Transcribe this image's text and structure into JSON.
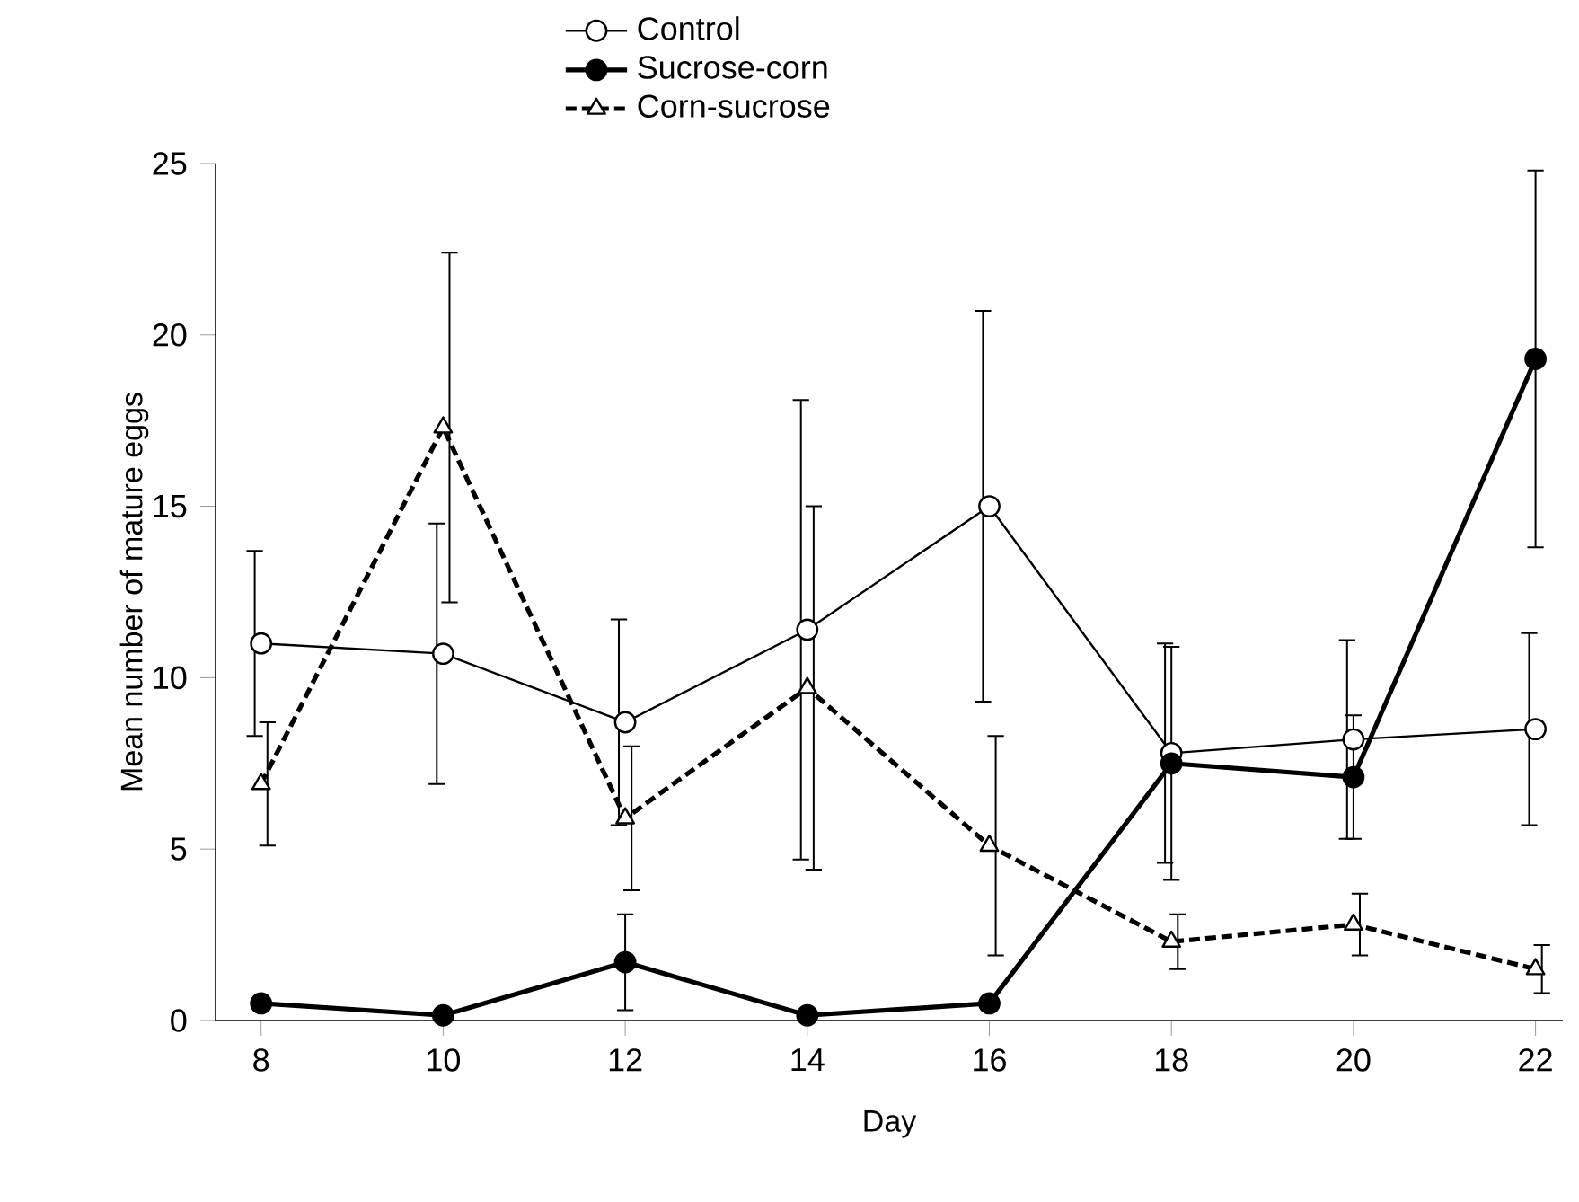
{
  "chart_data": {
    "type": "line",
    "xlabel": "Day",
    "ylabel": "Mean number of mature eggs",
    "x": [
      8,
      10,
      12,
      14,
      16,
      18,
      20,
      22
    ],
    "series": [
      {
        "name": "Control",
        "color": "#000000",
        "marker": "circle",
        "line_style": "solid",
        "values": [
          11,
          10.7,
          8.7,
          11.4,
          15,
          7.8,
          8.2,
          8.5
        ],
        "errors": [
          2.7,
          3.8,
          3,
          6.7,
          5.7,
          3.2,
          2.9,
          2.8
        ]
      },
      {
        "name": "Sucrose-corn",
        "color": "#000000",
        "marker": "circle",
        "line_style": "solid",
        "values": [
          0.5,
          0.15,
          1.7,
          0.15,
          0.5,
          7.5,
          7.1,
          19.3
        ],
        "errors": [
          null,
          null,
          1.4,
          null,
          null,
          3.4,
          1.8,
          5.5
        ]
      },
      {
        "name": "Corn-sucrose",
        "color": "#000000",
        "marker": "triangle",
        "line_style": "dashed",
        "values": [
          6.9,
          17.3,
          5.9,
          9.7,
          5.1,
          2.3,
          2.8,
          1.5
        ],
        "errors": [
          1.8,
          5.1,
          2.1,
          5.3,
          3.2,
          0.8,
          0.9,
          0.7
        ]
      }
    ],
    "xlim": [
      7.5,
      22.3
    ],
    "ylim": [
      0,
      25
    ],
    "xticks": [
      8,
      10,
      12,
      14,
      16,
      18,
      20,
      22
    ],
    "yticks": [
      0,
      5,
      10,
      15,
      20,
      25
    ],
    "legend": "top"
  }
}
